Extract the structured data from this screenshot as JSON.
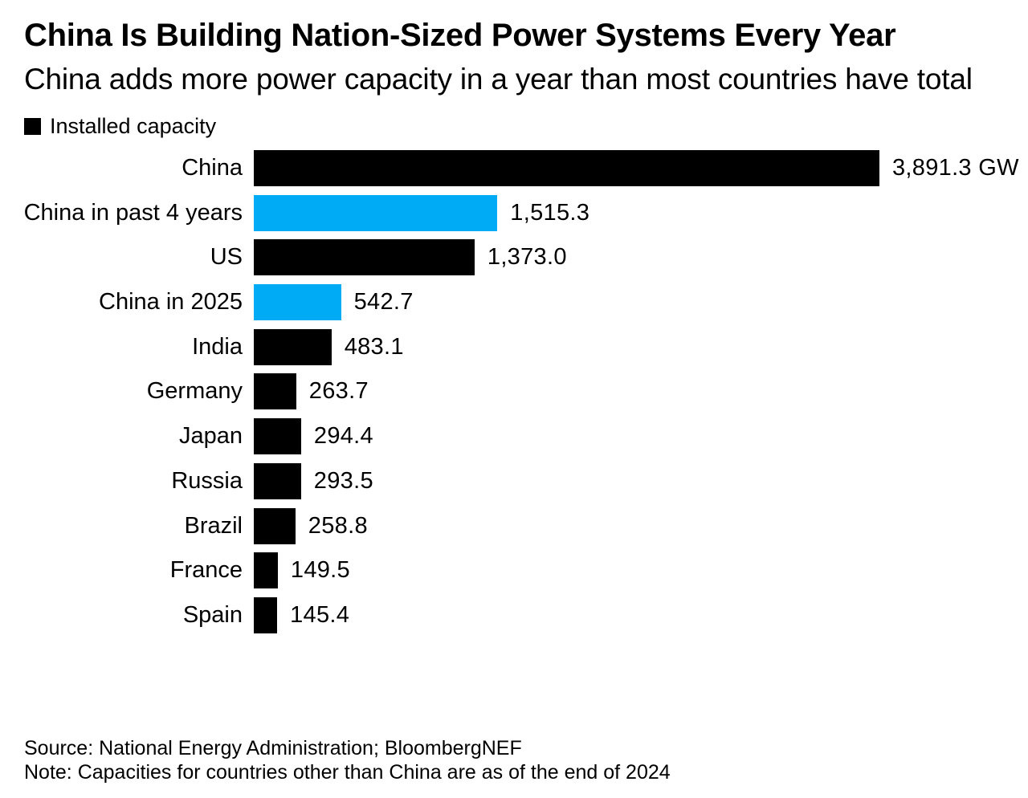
{
  "header": {
    "title": "China Is Building Nation-Sized Power Systems Every Year",
    "subtitle": "China adds more power capacity in a year than most countries have total"
  },
  "legend": {
    "label": "Installed capacity",
    "swatch_color": "#000000"
  },
  "footer": {
    "source": "Source: National Energy Administration; BloombergNEF",
    "note": "Note: Capacities for countries other than China are as of the end of 2024"
  },
  "colors": {
    "background": "#ffffff",
    "text": "#000000",
    "bar_black": "#000000",
    "bar_blue": "#00abf5"
  },
  "chart_data": {
    "type": "bar",
    "orientation": "horizontal",
    "title": "China Is Building Nation-Sized Power Systems Every Year",
    "subtitle": "China adds more power capacity in a year than most countries have total",
    "unit": "GW",
    "legend_entries": [
      "Installed capacity"
    ],
    "legend_position": "top-left",
    "grid": false,
    "xlim": [
      0,
      3891.3
    ],
    "categories": [
      "China",
      "China in past 4 years",
      "US",
      "China in 2025",
      "India",
      "Germany",
      "Japan",
      "Russia",
      "Brazil",
      "France",
      "Spain"
    ],
    "values": [
      3891.3,
      1515.3,
      1373.0,
      542.7,
      483.1,
      263.7,
      294.4,
      293.5,
      258.8,
      149.5,
      145.4
    ],
    "bars": [
      {
        "label": "China",
        "value": 3891.3,
        "display": "3,891.3 GW",
        "color": "#000000"
      },
      {
        "label": "China in past 4 years",
        "value": 1515.3,
        "display": "1,515.3",
        "color": "#00abf5"
      },
      {
        "label": "US",
        "value": 1373.0,
        "display": "1,373.0",
        "color": "#000000"
      },
      {
        "label": "China in 2025",
        "value": 542.7,
        "display": "542.7",
        "color": "#00abf5"
      },
      {
        "label": "India",
        "value": 483.1,
        "display": "483.1",
        "color": "#000000"
      },
      {
        "label": "Germany",
        "value": 263.7,
        "display": "263.7",
        "color": "#000000"
      },
      {
        "label": "Japan",
        "value": 294.4,
        "display": "294.4",
        "color": "#000000"
      },
      {
        "label": "Russia",
        "value": 293.5,
        "display": "293.5",
        "color": "#000000"
      },
      {
        "label": "Brazil",
        "value": 258.8,
        "display": "258.8",
        "color": "#000000"
      },
      {
        "label": "France",
        "value": 149.5,
        "display": "149.5",
        "color": "#000000"
      },
      {
        "label": "Spain",
        "value": 145.4,
        "display": "145.4",
        "color": "#000000"
      }
    ],
    "source": "Source: National Energy Administration; BloombergNEF",
    "note": "Note: Capacities for countries other than China are as of the end of 2024"
  }
}
